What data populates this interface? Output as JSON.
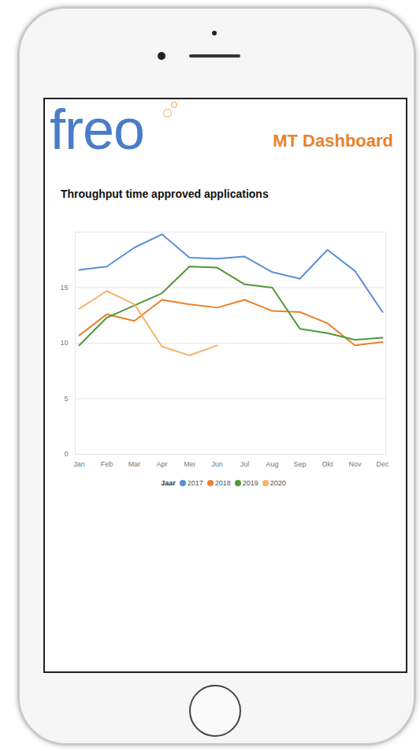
{
  "header": {
    "logo": "freo",
    "title": "MT Dashboard"
  },
  "chart_data": {
    "type": "line",
    "title": "Throughput time approved applications",
    "categories": [
      "Jan",
      "Feb",
      "Mar",
      "Apr",
      "Mei",
      "Jun",
      "Jul",
      "Aug",
      "Sep",
      "Okt",
      "Nov",
      "Dec"
    ],
    "series": [
      {
        "name": "2017",
        "color": "#5b8fd6",
        "values": [
          16.6,
          16.9,
          18.6,
          19.8,
          17.7,
          17.6,
          17.8,
          16.4,
          15.8,
          18.4,
          16.5,
          12.8
        ]
      },
      {
        "name": "2018",
        "color": "#e8822e",
        "values": [
          10.7,
          12.6,
          12.0,
          13.9,
          13.5,
          13.2,
          13.9,
          12.9,
          12.8,
          11.8,
          9.8,
          10.1
        ]
      },
      {
        "name": "2019",
        "color": "#4e9a38",
        "values": [
          9.8,
          12.3,
          13.4,
          14.5,
          16.9,
          16.8,
          15.3,
          15.0,
          11.3,
          10.9,
          10.3,
          10.5
        ]
      },
      {
        "name": "2020",
        "color": "#f5b56b",
        "values": [
          13.1,
          14.7,
          13.5,
          9.7,
          8.9,
          9.8,
          null,
          null,
          null,
          null,
          null,
          null
        ]
      }
    ],
    "ylim": [
      0,
      20
    ],
    "yticks": [
      0,
      5,
      10,
      15
    ],
    "grid": true,
    "legend": "bottom",
    "legend_title": "Jaar"
  }
}
